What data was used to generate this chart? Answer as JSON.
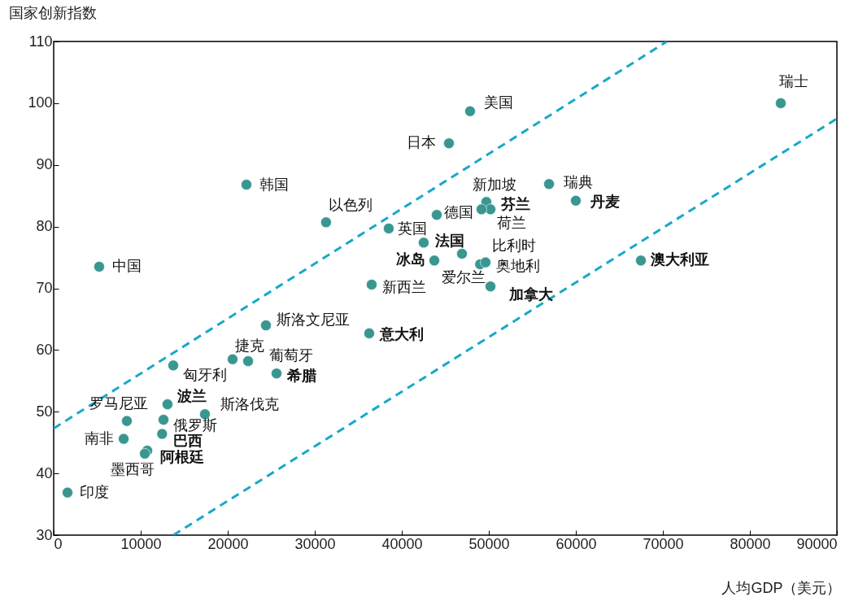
{
  "chart_data": {
    "type": "scatter",
    "ylabel": "国家创新指数",
    "xlabel": "人均GDP（美元）",
    "xlim": [
      0,
      90000
    ],
    "xticks": [
      0,
      10000,
      20000,
      30000,
      40000,
      50000,
      60000,
      70000,
      80000,
      90000
    ],
    "ylim": [
      30,
      110
    ],
    "yticks": [
      30,
      40,
      50,
      60,
      70,
      80,
      90,
      100,
      110
    ],
    "grid": false,
    "marker": "circle",
    "series": [
      {
        "color": "#3a9690",
        "x": [
          5230,
          22150,
          31300,
          45420,
          47850,
          83550,
          49720,
          50190,
          49160,
          56920,
          60000,
          44020,
          38500,
          42520,
          46920,
          43740,
          49000,
          49630,
          50190,
          36540,
          67480,
          24390,
          36260,
          20560,
          22340,
          13740,
          25610,
          13080,
          17380,
          8410,
          12620,
          8040,
          12460,
          10750,
          10470,
          1590
        ],
        "values": [
          73.5,
          86.8,
          80.7,
          93.5,
          98.7,
          100,
          84.0,
          82.8,
          82.8,
          86.9,
          84.2,
          81.9,
          79.7,
          77.4,
          75.6,
          74.5,
          73.9,
          74.2,
          70.3,
          70.6,
          74.5,
          64.0,
          62.7,
          58.5,
          58.2,
          57.5,
          56.2,
          51.2,
          49.6,
          48.5,
          48.7,
          45.6,
          46.4,
          43.7,
          43.2,
          36.9
        ]
      },
      {
        "type": "line",
        "color": "#16a9c8",
        "line_style": "dashed",
        "marker": "none",
        "x": [
          0,
          70470
        ],
        "values": [
          47.3,
          110
        ]
      },
      {
        "type": "line",
        "color": "#16a9c8",
        "line_style": "dashed",
        "marker": "none",
        "x": [
          13740,
          90000
        ],
        "values": [
          30,
          97.5
        ]
      }
    ],
    "annotations": [
      {
        "text": "中国",
        "x": 5230,
        "y": 73.5
      },
      {
        "text": "韩国",
        "x": 22150,
        "y": 86.8
      },
      {
        "text": "以色列",
        "x": 31300,
        "y": 80.7
      },
      {
        "text": "日本",
        "x": 45420,
        "y": 93.5
      },
      {
        "text": "美国",
        "x": 47850,
        "y": 98.7
      },
      {
        "text": "瑞士",
        "x": 83550,
        "y": 100
      },
      {
        "text": "新加坡",
        "x": 49720,
        "y": 84.0
      },
      {
        "text": "芬兰",
        "x": 50190,
        "y": 82.8
      },
      {
        "text": "荷兰",
        "x": 49160,
        "y": 82.8
      },
      {
        "text": "瑞典",
        "x": 56920,
        "y": 86.9
      },
      {
        "text": "丹麦",
        "x": 60000,
        "y": 84.2
      },
      {
        "text": "德国",
        "x": 44020,
        "y": 81.9
      },
      {
        "text": "英国",
        "x": 38500,
        "y": 79.7
      },
      {
        "text": "法国",
        "x": 42520,
        "y": 77.4
      },
      {
        "text": "比利时",
        "x": 46920,
        "y": 75.6
      },
      {
        "text": "冰岛",
        "x": 43740,
        "y": 74.5
      },
      {
        "text": "爱尔兰",
        "x": 49000,
        "y": 73.9
      },
      {
        "text": "奥地利",
        "x": 49630,
        "y": 74.2
      },
      {
        "text": "加拿大",
        "x": 50190,
        "y": 70.3
      },
      {
        "text": "新西兰",
        "x": 36540,
        "y": 70.6
      },
      {
        "text": "澳大利亚",
        "x": 67480,
        "y": 74.5
      },
      {
        "text": "斯洛文尼亚",
        "x": 24390,
        "y": 64.0
      },
      {
        "text": "意大利",
        "x": 36260,
        "y": 62.7
      },
      {
        "text": "捷克",
        "x": 20560,
        "y": 58.5
      },
      {
        "text": "葡萄牙",
        "x": 22340,
        "y": 58.2
      },
      {
        "text": "匈牙利",
        "x": 13740,
        "y": 57.5
      },
      {
        "text": "希腊",
        "x": 25610,
        "y": 56.2
      },
      {
        "text": "波兰",
        "x": 13080,
        "y": 51.2
      },
      {
        "text": "斯洛伐克",
        "x": 17380,
        "y": 49.6
      },
      {
        "text": "罗马尼亚",
        "x": 8410,
        "y": 48.5
      },
      {
        "text": "俄罗斯",
        "x": 12620,
        "y": 48.7
      },
      {
        "text": "南非",
        "x": 8040,
        "y": 45.6
      },
      {
        "text": "巴西",
        "x": 12460,
        "y": 46.4
      },
      {
        "text": "阿根廷",
        "x": 10750,
        "y": 43.7
      },
      {
        "text": "墨西哥",
        "x": 10470,
        "y": 43.2
      },
      {
        "text": "印度",
        "x": 1590,
        "y": 36.9
      }
    ]
  }
}
